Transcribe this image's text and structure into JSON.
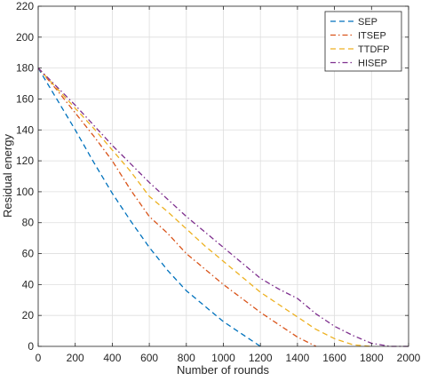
{
  "chart_data": {
    "type": "line",
    "xlabel": "Number of rounds",
    "ylabel": "Residual energy",
    "xlim": [
      0,
      2000
    ],
    "ylim": [
      0,
      220
    ],
    "xticks": [
      0,
      200,
      400,
      600,
      800,
      1000,
      1200,
      1400,
      1600,
      1800,
      2000
    ],
    "yticks": [
      0,
      20,
      40,
      60,
      80,
      100,
      120,
      140,
      160,
      180,
      200,
      220
    ],
    "grid": true,
    "legend_position": "top-right",
    "series": [
      {
        "name": "SEP",
        "color": "#0072BD",
        "dash": "dashed",
        "x": [
          0,
          100,
          200,
          300,
          400,
          500,
          600,
          700,
          800,
          900,
          1000,
          1100,
          1200
        ],
        "y": [
          180,
          160,
          140,
          119,
          99,
          81,
          64,
          49,
          36,
          26,
          16,
          8,
          0
        ]
      },
      {
        "name": "ITSEP",
        "color": "#D95319",
        "dash": "dashdot",
        "x": [
          0,
          100,
          200,
          300,
          400,
          500,
          600,
          700,
          800,
          900,
          1000,
          1100,
          1200,
          1300,
          1400,
          1500
        ],
        "y": [
          180,
          166,
          151,
          136,
          120,
          101,
          84,
          73,
          60,
          50,
          40,
          31,
          22,
          14,
          6,
          0
        ]
      },
      {
        "name": "TTDFP",
        "color": "#EDB120",
        "dash": "dashed",
        "x": [
          0,
          100,
          200,
          300,
          400,
          500,
          600,
          700,
          800,
          900,
          1000,
          1100,
          1200,
          1300,
          1400,
          1500,
          1600,
          1700,
          1800
        ],
        "y": [
          180,
          167,
          154,
          141,
          127,
          113,
          97,
          87,
          76,
          65,
          55,
          45,
          35,
          27,
          19,
          11,
          5,
          1,
          0
        ]
      },
      {
        "name": "HISEP",
        "color": "#7E2F8E",
        "dash": "dashdot",
        "x": [
          0,
          100,
          200,
          300,
          400,
          500,
          600,
          700,
          800,
          900,
          1000,
          1100,
          1200,
          1300,
          1400,
          1500,
          1600,
          1700,
          1800,
          1900,
          2000
        ],
        "y": [
          180,
          168,
          156,
          143,
          130,
          118,
          106,
          95,
          84,
          74,
          64,
          54,
          44,
          37,
          31,
          21,
          13,
          7,
          2,
          0,
          0
        ]
      }
    ]
  }
}
